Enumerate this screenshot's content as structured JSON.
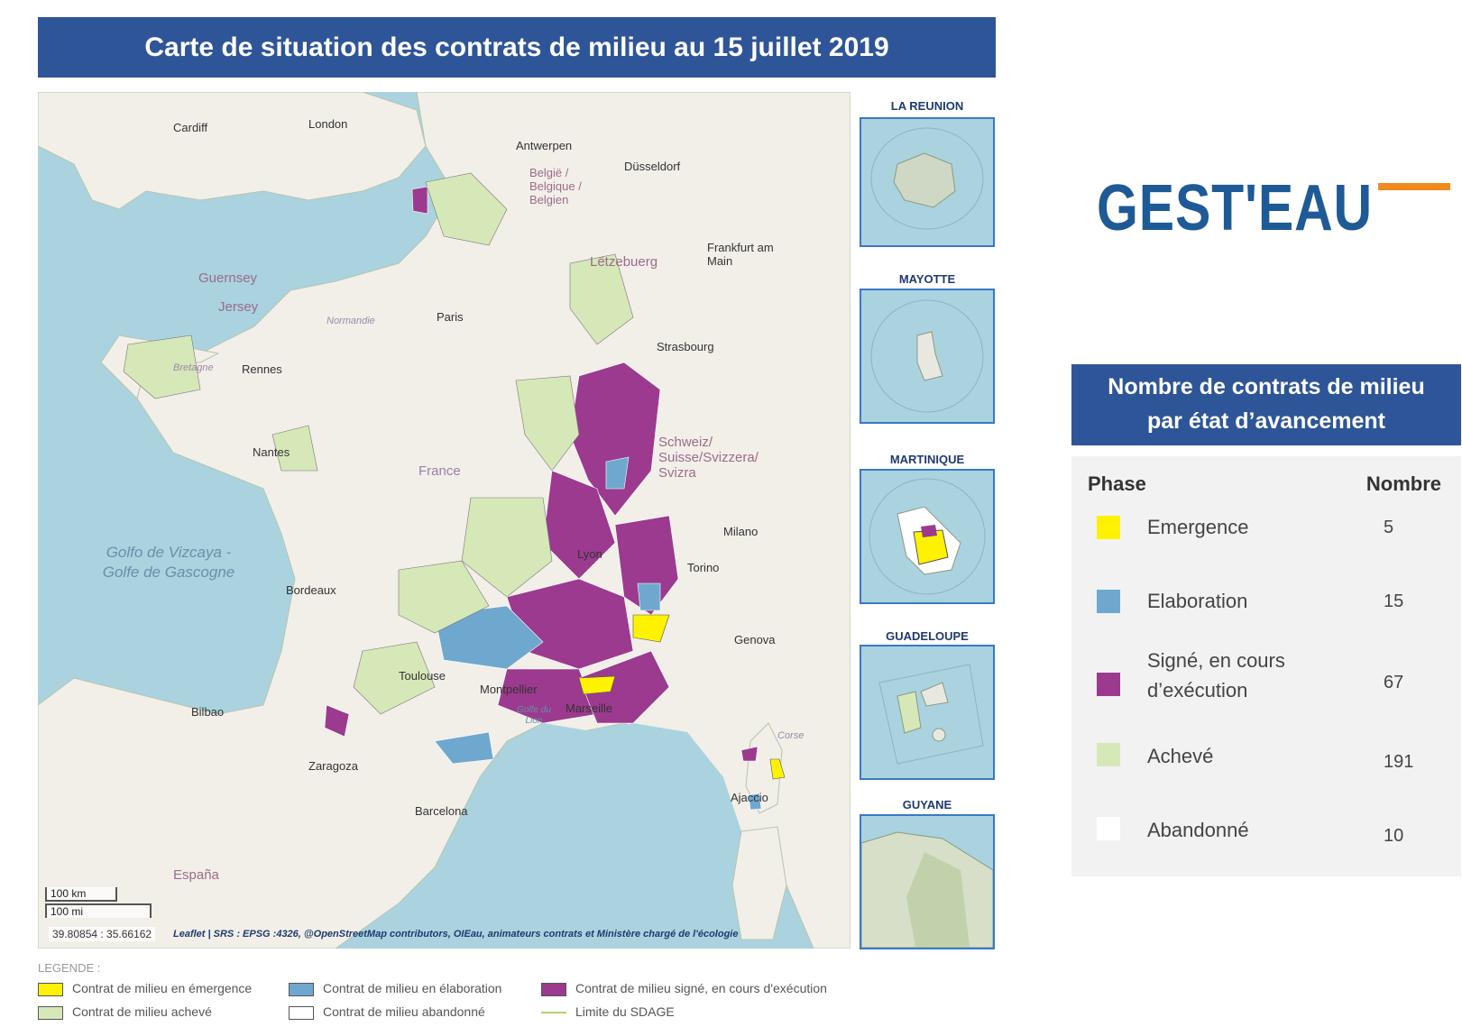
{
  "title": "Carte de situation des contrats de milieu au 15 juillet 2019",
  "map": {
    "labels": {
      "london": "London",
      "paris": "Paris",
      "rennes": "Rennes",
      "france": "France",
      "bordeaux": "Bordeaux",
      "marseille": "Marseille",
      "barcelona": "Barcelona",
      "genova": "Genova",
      "strasbourg": "Strasbourg",
      "lyon": "Lyon",
      "belgie": "België / Belgique / Belgien",
      "espana": "España",
      "golfe": "Golfo de Vizcaya - Golfe de Gascogne",
      "golfe_lion": "Golfe du Lion",
      "cardiff": "Cardiff",
      "antwerpen": "Antwerpen",
      "dusseldorf": "Düsseldorf",
      "frankfurt": "Frankfurt am Main",
      "letzebuerg": "Lëtzebuerg",
      "suisse": "Schweiz/ Suisse/Svizzera/ Svizra",
      "nantes": "Nantes",
      "toulouse": "Toulouse",
      "montpellier": "Montpellier",
      "bilbao": "Bilbao",
      "zaragoza": "Zaragoza",
      "ajaccio": "Ajaccio",
      "corse": "Corse",
      "normandie": "Normandie",
      "bretagne": "Bretagne",
      "guernsey": "Guernsey",
      "jersey": "Jersey",
      "milano": "Milano",
      "torino": "Torino"
    },
    "scale_km": "100 km",
    "scale_mi": "100 mi",
    "coordinates": "39.80854 : 35.66162",
    "attribution": "Leaflet | SRS : EPSG :4326, @OpenStreetMap contributors, OIEau, animateurs contrats et Ministère chargé de l'écologie"
  },
  "insets": [
    {
      "label": "LA REUNION"
    },
    {
      "label": "MAYOTTE"
    },
    {
      "label": "MARTINIQUE"
    },
    {
      "label": "GUADELOUPE"
    },
    {
      "label": "GUYANE"
    }
  ],
  "logo": {
    "text": "GEST'EAU",
    "color": "#1e5a96",
    "accent": "#f28a1e"
  },
  "stats": {
    "title_line1": "Nombre de contrats de milieu",
    "title_line2": "par état d’avancement",
    "header_phase": "Phase",
    "header_nombre": "Nombre",
    "rows": [
      {
        "phase": "Emergence",
        "nombre": "5",
        "color": "#fff200"
      },
      {
        "phase": "Elaboration",
        "nombre": "15",
        "color": "#6fa8cf"
      },
      {
        "phase": "Signé, en cours d’exécution",
        "nombre": "67",
        "color": "#9b3a8f"
      },
      {
        "phase": "Achevé",
        "nombre": "191",
        "color": "#d6e8b8"
      },
      {
        "phase": "Abandonné",
        "nombre": "10",
        "color": "#ffffff"
      }
    ]
  },
  "legend": {
    "title": "LEGENDE :",
    "items": [
      {
        "label": "Contrat de milieu en émergence",
        "color": "#fff200"
      },
      {
        "label": "Contrat de milieu en élaboration",
        "color": "#6fa8cf"
      },
      {
        "label": "Contrat de milieu signé, en cours d'exécution",
        "color": "#9b3a8f"
      },
      {
        "label": "Contrat de milieu achevé",
        "color": "#d6e8b8"
      },
      {
        "label": "Contrat de milieu abandonné",
        "color": "#ffffff"
      },
      {
        "label": "Limite du SDAGE",
        "color": "#b4d36b"
      }
    ]
  }
}
